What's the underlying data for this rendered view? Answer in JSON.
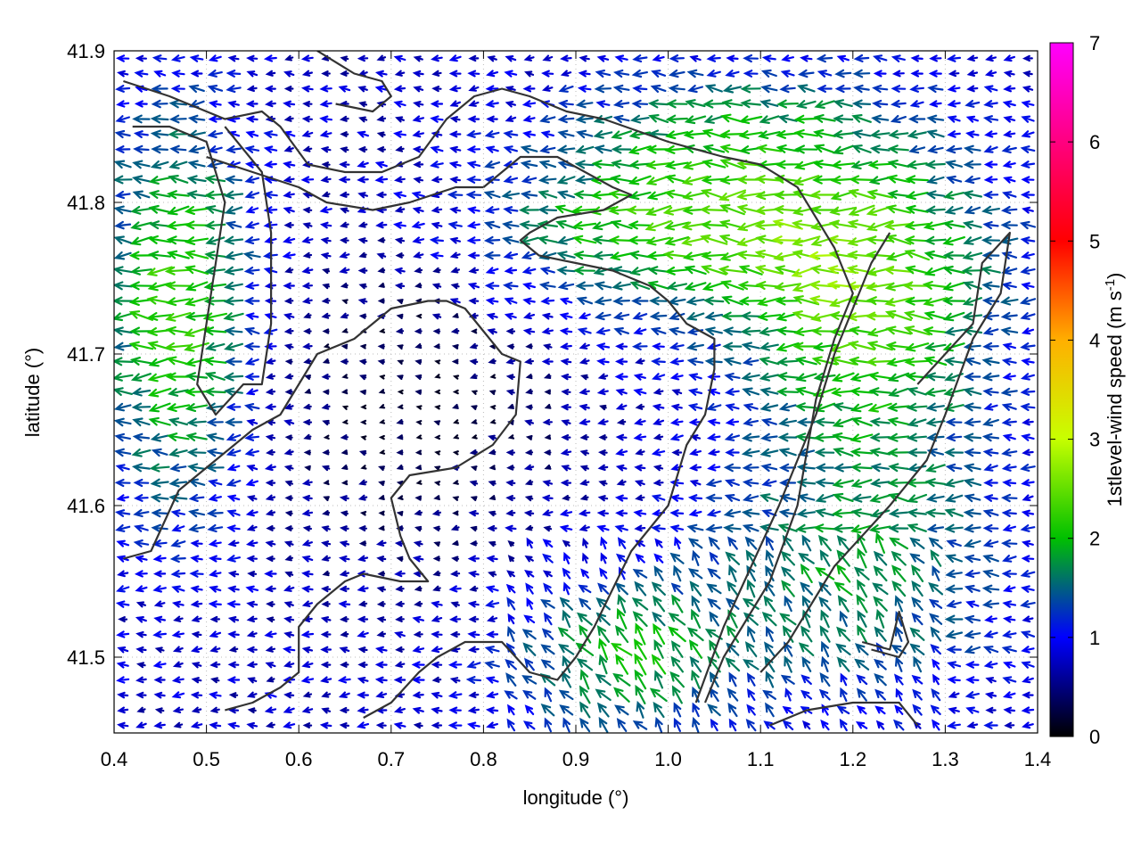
{
  "chart_data": {
    "type": "vector-field",
    "xlabel": "longitude (°)",
    "ylabel": "latitude (°)",
    "colorbar_label": "1stlevel-wind speed (m s-1)",
    "colorbar_label_parts": {
      "main": "1stlevel-wind speed (m s",
      "sup": "-1",
      "close": ")"
    },
    "xlim": [
      0.4,
      1.4
    ],
    "ylim": [
      41.45,
      41.9
    ],
    "xticks": [
      "0.4",
      "0.5",
      "0.6",
      "0.7",
      "0.8",
      "0.9",
      "1.0",
      "1.1",
      "1.2",
      "1.3",
      "1.4"
    ],
    "yticks": [
      "41.5",
      "41.6",
      "41.7",
      "41.8",
      "41.9"
    ],
    "colorbar_range": [
      0,
      7
    ],
    "colorbar_ticks": [
      "0",
      "1",
      "2",
      "3",
      "4",
      "5",
      "6",
      "7"
    ],
    "colormap": [
      "#000000",
      "#0000ff",
      "#00c000",
      "#c8ff00",
      "#ffb000",
      "#ff0000",
      "#ff00ff"
    ],
    "grid": "dotted",
    "field_grid": {
      "nx": 50,
      "ny": 45,
      "dominant_direction": "westward"
    },
    "contours": [
      [
        [
          0.41,
          41.88
        ],
        [
          0.46,
          41.87
        ],
        [
          0.52,
          41.855
        ],
        [
          0.56,
          41.86
        ],
        [
          0.58,
          41.85
        ],
        [
          0.61,
          41.825
        ],
        [
          0.65,
          41.82
        ],
        [
          0.69,
          41.82
        ],
        [
          0.73,
          41.83
        ],
        [
          0.76,
          41.855
        ],
        [
          0.79,
          41.87
        ],
        [
          0.82,
          41.875
        ],
        [
          0.85,
          41.87
        ],
        [
          0.89,
          41.86
        ],
        [
          0.93,
          41.855
        ],
        [
          1.0,
          41.84
        ],
        [
          1.06,
          41.83
        ],
        [
          1.1,
          41.825
        ],
        [
          1.14,
          41.81
        ],
        [
          1.18,
          41.77
        ],
        [
          1.2,
          41.74
        ],
        [
          1.18,
          41.71
        ],
        [
          1.16,
          41.67
        ],
        [
          1.14,
          41.6
        ],
        [
          1.11,
          41.55
        ],
        [
          1.06,
          41.5
        ],
        [
          1.04,
          41.47
        ]
      ],
      [
        [
          0.42,
          41.85
        ],
        [
          0.46,
          41.85
        ],
        [
          0.5,
          41.84
        ],
        [
          0.52,
          41.8
        ],
        [
          0.51,
          41.76
        ],
        [
          0.5,
          41.72
        ],
        [
          0.49,
          41.68
        ],
        [
          0.51,
          41.66
        ],
        [
          0.54,
          41.68
        ],
        [
          0.56,
          41.68
        ],
        [
          0.57,
          41.72
        ],
        [
          0.57,
          41.78
        ],
        [
          0.56,
          41.82
        ],
        [
          0.52,
          41.85
        ]
      ],
      [
        [
          0.41,
          41.565
        ],
        [
          0.44,
          41.57
        ],
        [
          0.47,
          41.61
        ],
        [
          0.51,
          41.63
        ],
        [
          0.55,
          41.65
        ],
        [
          0.58,
          41.66
        ],
        [
          0.6,
          41.68
        ],
        [
          0.62,
          41.7
        ],
        [
          0.66,
          41.71
        ],
        [
          0.7,
          41.73
        ],
        [
          0.74,
          41.735
        ],
        [
          0.76,
          41.735
        ],
        [
          0.78,
          41.73
        ],
        [
          0.8,
          41.715
        ],
        [
          0.82,
          41.7
        ],
        [
          0.84,
          41.695
        ],
        [
          0.835,
          41.66
        ],
        [
          0.81,
          41.64
        ],
        [
          0.77,
          41.625
        ],
        [
          0.72,
          41.62
        ],
        [
          0.7,
          41.605
        ],
        [
          0.71,
          41.58
        ],
        [
          0.72,
          41.565
        ],
        [
          0.74,
          41.55
        ],
        [
          0.71,
          41.55
        ],
        [
          0.67,
          41.555
        ],
        [
          0.65,
          41.55
        ],
        [
          0.62,
          41.535
        ],
        [
          0.6,
          41.52
        ],
        [
          0.6,
          41.49
        ],
        [
          0.58,
          41.48
        ],
        [
          0.55,
          41.47
        ],
        [
          0.52,
          41.465
        ]
      ],
      [
        [
          0.8,
          41.81
        ],
        [
          0.84,
          41.83
        ],
        [
          0.88,
          41.83
        ],
        [
          0.91,
          41.82
        ],
        [
          0.94,
          41.81
        ],
        [
          0.96,
          41.805
        ],
        [
          0.93,
          41.795
        ],
        [
          0.88,
          41.79
        ],
        [
          0.85,
          41.78
        ],
        [
          0.84,
          41.775
        ],
        [
          0.86,
          41.765
        ],
        [
          0.9,
          41.76
        ],
        [
          0.94,
          41.755
        ],
        [
          0.98,
          41.745
        ],
        [
          1.0,
          41.735
        ],
        [
          1.02,
          41.72
        ],
        [
          1.05,
          41.71
        ],
        [
          1.05,
          41.69
        ],
        [
          1.04,
          41.66
        ],
        [
          1.02,
          41.64
        ],
        [
          1.0,
          41.6
        ],
        [
          0.96,
          41.57
        ],
        [
          0.94,
          41.545
        ],
        [
          0.92,
          41.52
        ],
        [
          0.9,
          41.5
        ],
        [
          0.88,
          41.485
        ],
        [
          0.85,
          41.49
        ],
        [
          0.82,
          41.51
        ],
        [
          0.78,
          41.51
        ],
        [
          0.75,
          41.5
        ],
        [
          0.73,
          41.49
        ],
        [
          0.7,
          41.47
        ],
        [
          0.67,
          41.46
        ]
      ],
      [
        [
          0.5,
          41.83
        ],
        [
          0.55,
          41.82
        ],
        [
          0.6,
          41.81
        ],
        [
          0.63,
          41.8
        ],
        [
          0.68,
          41.795
        ],
        [
          0.72,
          41.8
        ],
        [
          0.77,
          41.81
        ],
        [
          0.8,
          41.81
        ]
      ],
      [
        [
          1.03,
          41.47
        ],
        [
          1.06,
          41.52
        ],
        [
          1.09,
          41.56
        ],
        [
          1.12,
          41.6
        ],
        [
          1.14,
          41.63
        ],
        [
          1.16,
          41.66
        ],
        [
          1.18,
          41.7
        ],
        [
          1.2,
          41.73
        ],
        [
          1.22,
          41.76
        ],
        [
          1.24,
          41.78
        ]
      ],
      [
        [
          1.27,
          41.68
        ],
        [
          1.3,
          41.7
        ],
        [
          1.33,
          41.72
        ],
        [
          1.34,
          41.76
        ],
        [
          1.37,
          41.78
        ],
        [
          1.36,
          41.74
        ],
        [
          1.33,
          41.71
        ],
        [
          1.3,
          41.66
        ],
        [
          1.28,
          41.63
        ],
        [
          1.24,
          41.6
        ],
        [
          1.21,
          41.58
        ],
        [
          1.18,
          41.56
        ],
        [
          1.16,
          41.54
        ],
        [
          1.13,
          41.51
        ],
        [
          1.1,
          41.49
        ]
      ],
      [
        [
          1.21,
          41.51
        ],
        [
          1.24,
          41.505
        ],
        [
          1.25,
          41.53
        ],
        [
          1.26,
          41.51
        ],
        [
          1.25,
          41.5
        ],
        [
          1.22,
          41.505
        ]
      ],
      [
        [
          0.62,
          41.9
        ],
        [
          0.66,
          41.885
        ],
        [
          0.69,
          41.88
        ],
        [
          0.7,
          41.87
        ],
        [
          0.68,
          41.86
        ],
        [
          0.64,
          41.865
        ]
      ],
      [
        [
          1.11,
          41.455
        ],
        [
          1.15,
          41.465
        ],
        [
          1.2,
          41.47
        ],
        [
          1.25,
          41.47
        ],
        [
          1.27,
          41.455
        ]
      ]
    ]
  }
}
